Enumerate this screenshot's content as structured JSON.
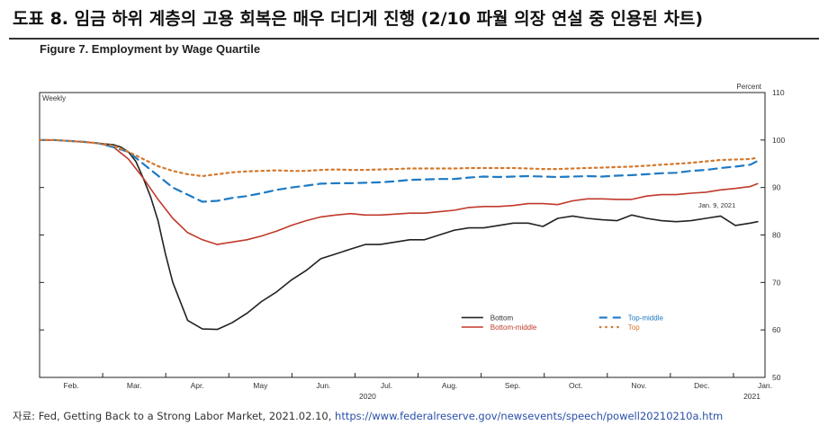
{
  "header": {
    "korean_title": "도표 8. 임금 하위 계층의 고용 회복은 매우 더디게 진행 (2/10 파월 의장 연설 중 인용된 차트)",
    "figure_title": "Figure 7. Employment by Wage Quartile"
  },
  "source": {
    "prefix": "자료: Fed, Getting Back to a Strong Labor Market, 2021.02.10,",
    "url": "https://www.federalreserve.gov/newsevents/speech/powell20210210a.htm"
  },
  "chart_data": {
    "type": "line",
    "left_label": "Weekly",
    "right_label": "Percent",
    "annotation": "Jan. 9, 2021",
    "x_ticks": [
      "Feb.",
      "Mar.",
      "Apr.",
      "May",
      "Jun.",
      "Jul.",
      "Aug.",
      "Sep.",
      "Oct.",
      "Nov.",
      "Dec.",
      "Jan."
    ],
    "x_year_labels": [
      "2020",
      "2021"
    ],
    "y_ticks": [
      50,
      60,
      70,
      80,
      90,
      100,
      110
    ],
    "ylim": [
      50,
      110
    ],
    "grid": false,
    "legend_position": "lower-right",
    "x_units": "weeks since Feb. 1, 2020",
    "series": [
      {
        "name": "Bottom",
        "color": "#222222",
        "style": "solid",
        "x": [
          0,
          1,
          2,
          3,
          4,
          5,
          5.5,
          6,
          6.5,
          7,
          7.5,
          8,
          8.5,
          9,
          10,
          11,
          12,
          13,
          14,
          15,
          16,
          17,
          18,
          19,
          20,
          21,
          22,
          23,
          24,
          25,
          26,
          27,
          28,
          29,
          30,
          31,
          32,
          33,
          34,
          35,
          36,
          37,
          38,
          39,
          40,
          41,
          42,
          43,
          44,
          45,
          46,
          47,
          48,
          48.5
        ],
        "values": [
          100,
          100,
          99.8,
          99.6,
          99.3,
          99,
          98.5,
          97.5,
          95.5,
          92,
          88,
          83,
          76,
          70,
          62,
          60.2,
          60.1,
          61.5,
          63.5,
          66,
          68,
          70.5,
          72.5,
          75,
          76,
          77,
          78,
          78,
          78.5,
          79,
          79,
          80,
          81,
          81.5,
          81.5,
          82,
          82.5,
          82.5,
          81.8,
          83.5,
          84,
          83.5,
          83.2,
          83,
          84.2,
          83.5,
          83,
          82.8,
          83,
          83.5,
          84,
          82,
          82.5,
          82.8
        ]
      },
      {
        "name": "Bottom-middle",
        "color": "#c0392b",
        "style": "solid",
        "x": [
          0,
          1,
          2,
          3,
          4,
          5,
          6,
          7,
          8,
          9,
          10,
          11,
          12,
          13,
          14,
          15,
          16,
          17,
          18,
          19,
          20,
          21,
          22,
          23,
          24,
          25,
          26,
          27,
          28,
          29,
          30,
          31,
          32,
          33,
          34,
          35,
          36,
          37,
          38,
          39,
          40,
          41,
          42,
          43,
          44,
          45,
          46,
          47,
          48,
          48.5
        ],
        "values": [
          100,
          100,
          99.8,
          99.6,
          99.3,
          98.5,
          96,
          92,
          87.5,
          83.5,
          80.5,
          79,
          78,
          78.5,
          79,
          79.8,
          80.8,
          82,
          83,
          83.8,
          84.2,
          84.5,
          84.2,
          84.2,
          84.4,
          84.6,
          84.6,
          84.9,
          85.2,
          85.8,
          86,
          86,
          86.2,
          86.6,
          86.6,
          86.4,
          87.2,
          87.6,
          87.6,
          87.5,
          87.5,
          88.2,
          88.5,
          88.5,
          88.8,
          89,
          89.5,
          89.8,
          90.2,
          90.8
        ]
      },
      {
        "name": "Top-middle",
        "color": "#1f7ac4",
        "style": "dashed",
        "x": [
          0,
          1,
          2,
          3,
          4,
          5,
          6,
          7,
          8,
          9,
          10,
          11,
          12,
          13,
          14,
          15,
          16,
          17,
          18,
          19,
          20,
          21,
          22,
          23,
          24,
          25,
          26,
          27,
          28,
          29,
          30,
          31,
          32,
          33,
          34,
          35,
          36,
          37,
          38,
          39,
          40,
          41,
          42,
          43,
          44,
          45,
          46,
          47,
          48,
          48.5
        ],
        "values": [
          100,
          100,
          99.8,
          99.6,
          99.3,
          98.5,
          97.5,
          95,
          92.5,
          90,
          88.5,
          87,
          87.2,
          87.8,
          88.2,
          88.8,
          89.5,
          90,
          90.4,
          90.8,
          90.9,
          90.9,
          91,
          91.1,
          91.3,
          91.6,
          91.7,
          91.8,
          91.8,
          92.1,
          92.3,
          92.2,
          92.3,
          92.4,
          92.3,
          92.2,
          92.3,
          92.4,
          92.3,
          92.5,
          92.6,
          92.8,
          93,
          93.1,
          93.5,
          93.7,
          94.1,
          94.4,
          94.8,
          95.6
        ]
      },
      {
        "name": "Top",
        "color": "#d4782c",
        "style": "dotted",
        "x": [
          0,
          1,
          2,
          3,
          4,
          5,
          6,
          7,
          8,
          9,
          10,
          11,
          12,
          13,
          14,
          15,
          16,
          17,
          18,
          19,
          20,
          21,
          22,
          23,
          24,
          25,
          26,
          27,
          28,
          29,
          30,
          31,
          32,
          33,
          34,
          35,
          36,
          37,
          38,
          39,
          40,
          41,
          42,
          43,
          44,
          45,
          46,
          47,
          48,
          48.5
        ],
        "values": [
          100,
          100,
          99.8,
          99.6,
          99.3,
          98.8,
          97.5,
          96,
          94.5,
          93.5,
          92.8,
          92.4,
          92.8,
          93.2,
          93.4,
          93.5,
          93.6,
          93.5,
          93.5,
          93.7,
          93.8,
          93.7,
          93.7,
          93.8,
          93.9,
          94,
          94,
          94,
          94,
          94.1,
          94.1,
          94.1,
          94.1,
          94,
          93.9,
          93.9,
          94,
          94.1,
          94.2,
          94.3,
          94.4,
          94.6,
          94.8,
          95,
          95.2,
          95.5,
          95.8,
          95.9,
          96,
          96.3
        ]
      }
    ]
  }
}
